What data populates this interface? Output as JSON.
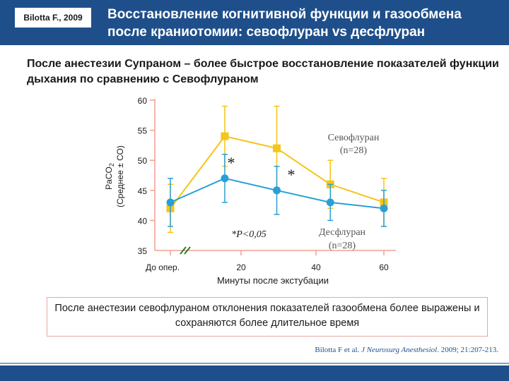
{
  "header": {
    "author": "Bilotta F., 2009",
    "title": "Восстановление когнитивной функции и газообмена после краниотомии: севофлуран vs десфлуран"
  },
  "subtitle": "После анестезии Супраном – более быстрое восстановление показателей функции дыхания по сравнению с Севофлураном",
  "chart_data": {
    "type": "line",
    "ylabel_line1": "PaCO",
    "ylabel_sub": "2",
    "ylabel_line2": "(Среднее ± СО)",
    "xlabel": "Минуты после экстубации",
    "ylim": [
      35,
      60
    ],
    "yticks": [
      "35",
      "40",
      "45",
      "50",
      "55",
      "60"
    ],
    "xticks": [
      "До опер.",
      "20",
      "40",
      "60"
    ],
    "colors": {
      "sevo": "#f5c518",
      "des": "#2a9fd6",
      "axis": "#f0a090"
    },
    "series": [
      {
        "key": "sevo",
        "name": "Севофлуран",
        "n": "(n=28)",
        "x": [
          0,
          15,
          30,
          45,
          60
        ],
        "values": [
          42,
          54,
          52,
          46,
          43
        ],
        "err": [
          4,
          5,
          7,
          4,
          4
        ]
      },
      {
        "key": "des",
        "name": "Десфлуран",
        "n": "(n=28)",
        "x": [
          0,
          15,
          30,
          45,
          60
        ],
        "values": [
          43,
          47,
          45,
          43,
          42
        ],
        "err": [
          4,
          4,
          4,
          3,
          3
        ]
      }
    ],
    "annotations": {
      "star": "*",
      "pvalue": "*P<0,05"
    }
  },
  "caption": "После анестезии севофлураном отклонения показателей газообмена более выражены и сохраняются более длительное время",
  "citation": {
    "prefix": "Bilotta F et al. ",
    "journal": "J Neurosurg Anesthesiol",
    "suffix": ". 2009; 21:207-213."
  }
}
